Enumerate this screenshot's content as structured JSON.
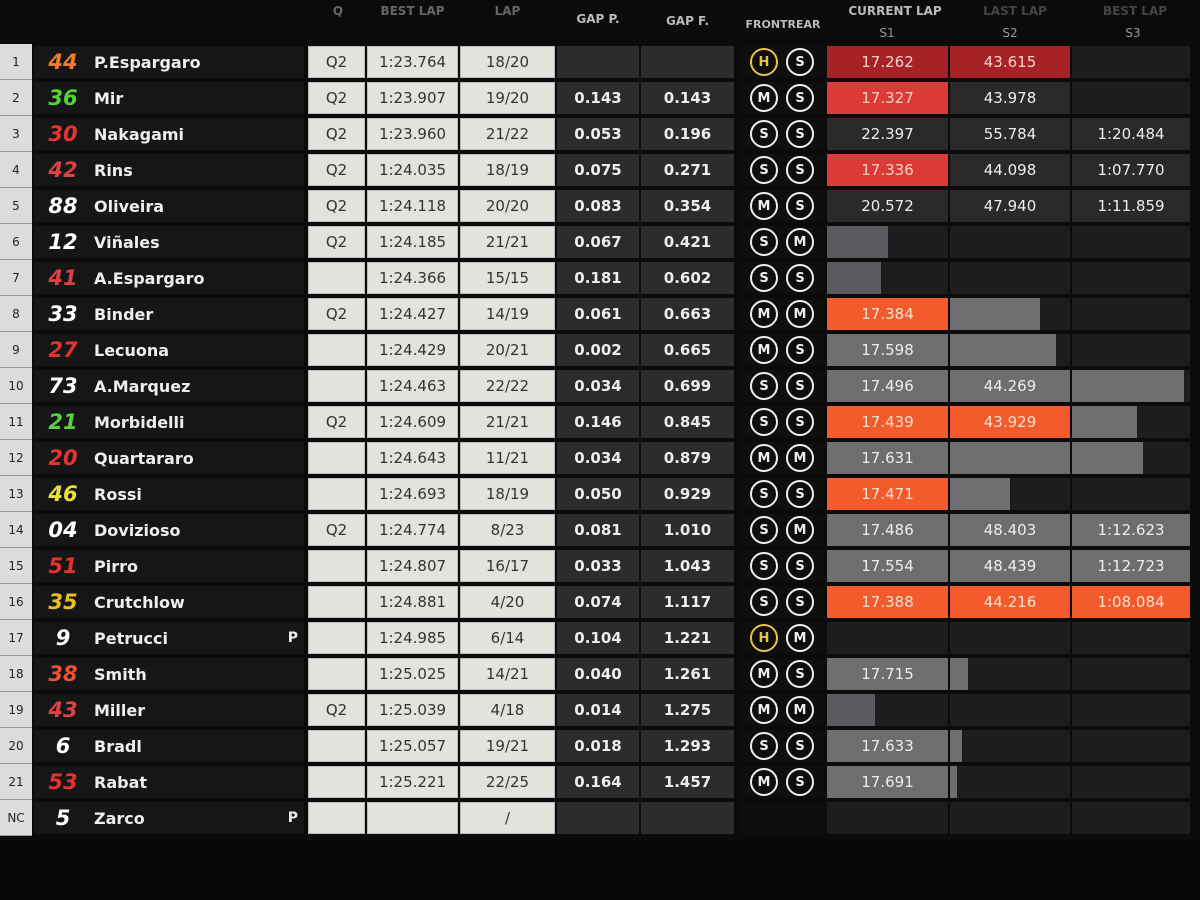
{
  "headers": {
    "q": "Q",
    "best_lap": "BEST LAP",
    "lap": "LAP",
    "gap_p": "GAP P.",
    "gap_f": "GAP F.",
    "tyres": "FRONTREAR",
    "current_lap": "CURRENT LAP",
    "last_lap": "LAST LAP",
    "best_lap_sectors": "BEST LAP",
    "s1": "S1",
    "s2": "S2",
    "s3": "S3"
  },
  "colors": {
    "sector_best_overall": "#f35a2c",
    "sector_personal": "#dc3a36",
    "sector_dark_red": "#a52226",
    "hard_tyre": "#e2c24a"
  },
  "rows": [
    {
      "pos": "1",
      "num": "44",
      "num_color": "#f07a30",
      "name": "P.Espargaro",
      "pit": "",
      "q": "Q2",
      "best": "1:23.764",
      "lap": "18/20",
      "gap_p": "",
      "gap_f": "",
      "front": "H",
      "rear": "S",
      "sectors": [
        {
          "value": "17.262",
          "state": "darkred",
          "fill": 1
        },
        {
          "value": "43.615",
          "state": "darkred",
          "fill": 1
        },
        null
      ]
    },
    {
      "pos": "2",
      "num": "36",
      "num_color": "#56d23c",
      "name": "Mir",
      "pit": "",
      "q": "Q2",
      "best": "1:23.907",
      "lap": "19/20",
      "gap_p": "0.143",
      "gap_f": "0.143",
      "front": "M",
      "rear": "S",
      "sectors": [
        {
          "value": "17.327",
          "state": "red",
          "fill": 1
        },
        {
          "value": "43.978",
          "state": "dark",
          "fill": 1
        },
        null
      ]
    },
    {
      "pos": "3",
      "num": "30",
      "num_color": "#e8332c",
      "name": "Nakagami",
      "pit": "",
      "q": "Q2",
      "best": "1:23.960",
      "lap": "21/22",
      "gap_p": "0.053",
      "gap_f": "0.196",
      "front": "S",
      "rear": "S",
      "sectors": [
        {
          "value": "22.397",
          "state": "dark",
          "fill": 1
        },
        {
          "value": "55.784",
          "state": "dark",
          "fill": 1
        },
        {
          "value": "1:20.484",
          "state": "dark",
          "fill": 1
        }
      ]
    },
    {
      "pos": "4",
      "num": "42",
      "num_color": "#e04040",
      "name": "Rins",
      "pit": "",
      "q": "Q2",
      "best": "1:24.035",
      "lap": "18/19",
      "gap_p": "0.075",
      "gap_f": "0.271",
      "front": "S",
      "rear": "S",
      "sectors": [
        {
          "value": "17.336",
          "state": "red",
          "fill": 1
        },
        {
          "value": "44.098",
          "state": "dark",
          "fill": 1
        },
        {
          "value": "1:07.770",
          "state": "dark",
          "fill": 1
        }
      ]
    },
    {
      "pos": "5",
      "num": "88",
      "num_color": "#ffffff",
      "name": "Oliveira",
      "pit": "",
      "q": "Q2",
      "best": "1:24.118",
      "lap": "20/20",
      "gap_p": "0.083",
      "gap_f": "0.354",
      "front": "M",
      "rear": "S",
      "sectors": [
        {
          "value": "20.572",
          "state": "dark",
          "fill": 1
        },
        {
          "value": "47.940",
          "state": "dark",
          "fill": 1
        },
        {
          "value": "1:11.859",
          "state": "dark",
          "fill": 1
        }
      ]
    },
    {
      "pos": "6",
      "num": "12",
      "num_color": "#ffffff",
      "name": "Viñales",
      "pit": "",
      "q": "Q2",
      "best": "1:24.185",
      "lap": "21/21",
      "gap_p": "0.067",
      "gap_f": "0.421",
      "front": "S",
      "rear": "M",
      "sectors": [
        {
          "value": "",
          "state": "partial",
          "fill": 0.5
        },
        null,
        null
      ]
    },
    {
      "pos": "7",
      "num": "41",
      "num_color": "#e04040",
      "name": "A.Espargaro",
      "pit": "",
      "q": "",
      "best": "1:24.366",
      "lap": "15/15",
      "gap_p": "0.181",
      "gap_f": "0.602",
      "front": "S",
      "rear": "S",
      "sectors": [
        {
          "value": "",
          "state": "partial",
          "fill": 0.45
        },
        null,
        null
      ]
    },
    {
      "pos": "8",
      "num": "33",
      "num_color": "#ffffff",
      "name": "Binder",
      "pit": "",
      "q": "Q2",
      "best": "1:24.427",
      "lap": "14/19",
      "gap_p": "0.061",
      "gap_f": "0.663",
      "front": "M",
      "rear": "M",
      "sectors": [
        {
          "value": "17.384",
          "state": "orange",
          "fill": 1
        },
        {
          "value": "",
          "state": "grey",
          "fill": 0.75
        },
        null
      ]
    },
    {
      "pos": "9",
      "num": "27",
      "num_color": "#e8332c",
      "name": "Lecuona",
      "pit": "",
      "q": "",
      "best": "1:24.429",
      "lap": "20/21",
      "gap_p": "0.002",
      "gap_f": "0.665",
      "front": "M",
      "rear": "S",
      "sectors": [
        {
          "value": "17.598",
          "state": "grey",
          "fill": 1
        },
        {
          "value": "",
          "state": "grey",
          "fill": 0.88
        },
        null
      ]
    },
    {
      "pos": "10",
      "num": "73",
      "num_color": "#ffffff",
      "name": "A.Marquez",
      "pit": "",
      "q": "",
      "best": "1:24.463",
      "lap": "22/22",
      "gap_p": "0.034",
      "gap_f": "0.699",
      "front": "S",
      "rear": "S",
      "sectors": [
        {
          "value": "17.496",
          "state": "grey",
          "fill": 1
        },
        {
          "value": "44.269",
          "state": "grey",
          "fill": 1
        },
        {
          "value": "",
          "state": "grey",
          "fill": 0.95
        }
      ]
    },
    {
      "pos": "11",
      "num": "21",
      "num_color": "#56d23c",
      "name": "Morbidelli",
      "pit": "",
      "q": "Q2",
      "best": "1:24.609",
      "lap": "21/21",
      "gap_p": "0.146",
      "gap_f": "0.845",
      "front": "S",
      "rear": "S",
      "sectors": [
        {
          "value": "17.439",
          "state": "orange",
          "fill": 1
        },
        {
          "value": "43.929",
          "state": "orange",
          "fill": 1
        },
        {
          "value": "",
          "state": "grey",
          "fill": 0.55
        }
      ]
    },
    {
      "pos": "12",
      "num": "20",
      "num_color": "#e8332c",
      "name": "Quartararo",
      "pit": "",
      "q": "",
      "best": "1:24.643",
      "lap": "11/21",
      "gap_p": "0.034",
      "gap_f": "0.879",
      "front": "M",
      "rear": "M",
      "sectors": [
        {
          "value": "17.631",
          "state": "grey",
          "fill": 1
        },
        {
          "value": "",
          "state": "grey",
          "fill": 1
        },
        {
          "value": "",
          "state": "grey",
          "fill": 0.6
        }
      ]
    },
    {
      "pos": "13",
      "num": "46",
      "num_color": "#e8e040",
      "name": "Rossi",
      "pit": "",
      "q": "",
      "best": "1:24.693",
      "lap": "18/19",
      "gap_p": "0.050",
      "gap_f": "0.929",
      "front": "S",
      "rear": "S",
      "sectors": [
        {
          "value": "17.471",
          "state": "orange",
          "fill": 1
        },
        {
          "value": "",
          "state": "grey",
          "fill": 0.5
        },
        null
      ]
    },
    {
      "pos": "14",
      "num": "04",
      "num_color": "#ffffff",
      "name": "Dovizioso",
      "pit": "",
      "q": "Q2",
      "best": "1:24.774",
      "lap": "8/23",
      "gap_p": "0.081",
      "gap_f": "1.010",
      "front": "S",
      "rear": "M",
      "sectors": [
        {
          "value": "17.486",
          "state": "grey",
          "fill": 1
        },
        {
          "value": "48.403",
          "state": "grey",
          "fill": 1
        },
        {
          "value": "1:12.623",
          "state": "grey",
          "fill": 1
        }
      ]
    },
    {
      "pos": "15",
      "num": "51",
      "num_color": "#e8332c",
      "name": "Pirro",
      "pit": "",
      "q": "",
      "best": "1:24.807",
      "lap": "16/17",
      "gap_p": "0.033",
      "gap_f": "1.043",
      "front": "S",
      "rear": "S",
      "sectors": [
        {
          "value": "17.554",
          "state": "grey",
          "fill": 1
        },
        {
          "value": "48.439",
          "state": "grey",
          "fill": 1
        },
        {
          "value": "1:12.723",
          "state": "grey",
          "fill": 1
        }
      ]
    },
    {
      "pos": "16",
      "num": "35",
      "num_color": "#e8c020",
      "name": "Crutchlow",
      "pit": "",
      "q": "",
      "best": "1:24.881",
      "lap": "4/20",
      "gap_p": "0.074",
      "gap_f": "1.117",
      "front": "S",
      "rear": "S",
      "sectors": [
        {
          "value": "17.388",
          "state": "orange",
          "fill": 1
        },
        {
          "value": "44.216",
          "state": "orange",
          "fill": 1
        },
        {
          "value": "1:08.084",
          "state": "orange",
          "fill": 1
        }
      ]
    },
    {
      "pos": "17",
      "num": "9",
      "num_color": "#ffffff",
      "name": "Petrucci",
      "pit": "P",
      "q": "",
      "best": "1:24.985",
      "lap": "6/14",
      "gap_p": "0.104",
      "gap_f": "1.221",
      "front": "H",
      "rear": "M",
      "sectors": [
        null,
        null,
        null
      ]
    },
    {
      "pos": "18",
      "num": "38",
      "num_color": "#f05030",
      "name": "Smith",
      "pit": "",
      "q": "",
      "best": "1:25.025",
      "lap": "14/21",
      "gap_p": "0.040",
      "gap_f": "1.261",
      "front": "M",
      "rear": "S",
      "sectors": [
        {
          "value": "17.715",
          "state": "grey",
          "fill": 1
        },
        {
          "value": "",
          "state": "grey",
          "fill": 0.15
        },
        null
      ]
    },
    {
      "pos": "19",
      "num": "43",
      "num_color": "#e04040",
      "name": "Miller",
      "pit": "",
      "q": "Q2",
      "best": "1:25.039",
      "lap": "4/18",
      "gap_p": "0.014",
      "gap_f": "1.275",
      "front": "M",
      "rear": "M",
      "sectors": [
        {
          "value": "",
          "state": "partial",
          "fill": 0.4
        },
        null,
        null
      ]
    },
    {
      "pos": "20",
      "num": "6",
      "num_color": "#ffffff",
      "name": "Bradl",
      "pit": "",
      "q": "",
      "best": "1:25.057",
      "lap": "19/21",
      "gap_p": "0.018",
      "gap_f": "1.293",
      "front": "S",
      "rear": "S",
      "sectors": [
        {
          "value": "17.633",
          "state": "grey",
          "fill": 1
        },
        {
          "value": "",
          "state": "grey",
          "fill": 0.1
        },
        null
      ]
    },
    {
      "pos": "21",
      "num": "53",
      "num_color": "#e8332c",
      "name": "Rabat",
      "pit": "",
      "q": "",
      "best": "1:25.221",
      "lap": "22/25",
      "gap_p": "0.164",
      "gap_f": "1.457",
      "front": "M",
      "rear": "S",
      "sectors": [
        {
          "value": "17.691",
          "state": "grey",
          "fill": 1
        },
        {
          "value": "",
          "state": "grey",
          "fill": 0.06
        },
        null
      ]
    },
    {
      "pos": "NC",
      "num": "5",
      "num_color": "#ffffff",
      "name": "Zarco",
      "pit": "P",
      "q": "",
      "best": "",
      "lap": "/",
      "gap_p": "",
      "gap_f": "",
      "front": "",
      "rear": "",
      "sectors": [
        null,
        null,
        null
      ]
    }
  ]
}
